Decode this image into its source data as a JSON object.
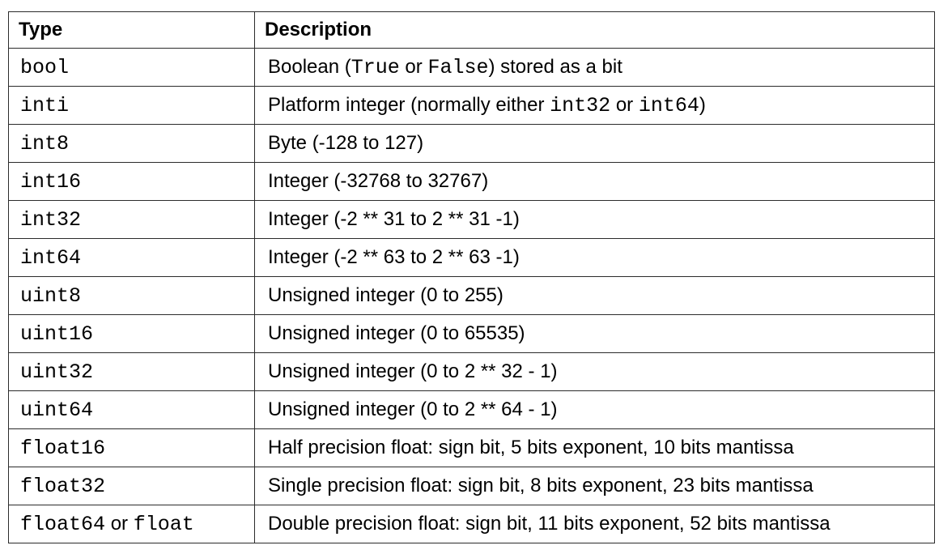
{
  "table": {
    "headers": {
      "type": "Type",
      "description": "Description"
    },
    "rows": [
      {
        "type": [
          {
            "text": "bool",
            "mono": true
          }
        ],
        "description": [
          {
            "text": "Boolean (",
            "mono": false
          },
          {
            "text": "True",
            "mono": true
          },
          {
            "text": " or ",
            "mono": false
          },
          {
            "text": "False",
            "mono": true
          },
          {
            "text": ") stored as a bit",
            "mono": false
          }
        ]
      },
      {
        "type": [
          {
            "text": "inti",
            "mono": true
          }
        ],
        "description": [
          {
            "text": "Platform integer (normally either ",
            "mono": false
          },
          {
            "text": "int32",
            "mono": true
          },
          {
            "text": " or ",
            "mono": false
          },
          {
            "text": "int64",
            "mono": true
          },
          {
            "text": ")",
            "mono": false
          }
        ]
      },
      {
        "type": [
          {
            "text": "int8",
            "mono": true
          }
        ],
        "description": [
          {
            "text": "Byte (-128 to 127)",
            "mono": false
          }
        ]
      },
      {
        "type": [
          {
            "text": "int16",
            "mono": true
          }
        ],
        "description": [
          {
            "text": "Integer (-32768 to 32767)",
            "mono": false
          }
        ]
      },
      {
        "type": [
          {
            "text": "int32",
            "mono": true
          }
        ],
        "description": [
          {
            "text": "Integer (-2 ** 31 to 2 ** 31 -1)",
            "mono": false
          }
        ]
      },
      {
        "type": [
          {
            "text": "int64",
            "mono": true
          }
        ],
        "description": [
          {
            "text": "Integer (-2 ** 63 to 2 ** 63 -1)",
            "mono": false
          }
        ]
      },
      {
        "type": [
          {
            "text": "uint8",
            "mono": true
          }
        ],
        "description": [
          {
            "text": "Unsigned integer (0 to 255)",
            "mono": false
          }
        ]
      },
      {
        "type": [
          {
            "text": "uint16",
            "mono": true
          }
        ],
        "description": [
          {
            "text": "Unsigned integer (0 to 65535)",
            "mono": false
          }
        ]
      },
      {
        "type": [
          {
            "text": "uint32",
            "mono": true
          }
        ],
        "description": [
          {
            "text": "Unsigned integer (0 to 2 ** 32 - 1)",
            "mono": false
          }
        ]
      },
      {
        "type": [
          {
            "text": "uint64",
            "mono": true
          }
        ],
        "description": [
          {
            "text": "Unsigned integer (0 to 2 ** 64 - 1)",
            "mono": false
          }
        ]
      },
      {
        "type": [
          {
            "text": "float16",
            "mono": true
          }
        ],
        "description": [
          {
            "text": "Half precision float: sign bit, 5 bits exponent, 10 bits mantissa",
            "mono": false
          }
        ]
      },
      {
        "type": [
          {
            "text": "float32",
            "mono": true
          }
        ],
        "description": [
          {
            "text": "Single precision float: sign bit, 8 bits exponent, 23 bits mantissa",
            "mono": false
          }
        ]
      },
      {
        "type": [
          {
            "text": "float64",
            "mono": true
          },
          {
            "text": " or ",
            "mono": false
          },
          {
            "text": "float",
            "mono": true
          }
        ],
        "description": [
          {
            "text": "Double precision float: sign bit, 11 bits exponent, 52 bits mantissa",
            "mono": false
          }
        ]
      }
    ]
  }
}
